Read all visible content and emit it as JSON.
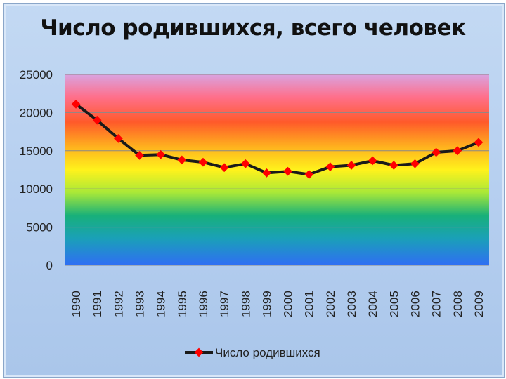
{
  "chart_data": {
    "type": "line",
    "title": "Число родившихся, всего человек",
    "categories": [
      "1990",
      "1991",
      "1992",
      "1993",
      "1994",
      "1995",
      "1996",
      "1997",
      "1998",
      "1999",
      "2000",
      "2001",
      "2002",
      "2003",
      "2004",
      "2005",
      "2006",
      "2007",
      "2008",
      "2009"
    ],
    "series": [
      {
        "name": "Число родившихся",
        "values": [
          21100,
          19000,
          16600,
          14400,
          14500,
          13800,
          13500,
          12800,
          13300,
          12100,
          12300,
          11900,
          12900,
          13100,
          13700,
          13100,
          13300,
          14800,
          15000,
          16100
        ],
        "line_color": "#1a1a1a",
        "marker_color": "#ff0000"
      }
    ],
    "ylim": [
      0,
      25000
    ],
    "yticks": [
      "0",
      "5000",
      "10000",
      "15000",
      "20000",
      "25000"
    ],
    "grid": true,
    "legend_position": "bottom",
    "plot_background": "rainbow gradient",
    "colors": {
      "slide_background": "#b9d1f0",
      "line": "#1a1a1a",
      "marker": "#ff0000",
      "gridline": "#8a8a8a"
    }
  }
}
